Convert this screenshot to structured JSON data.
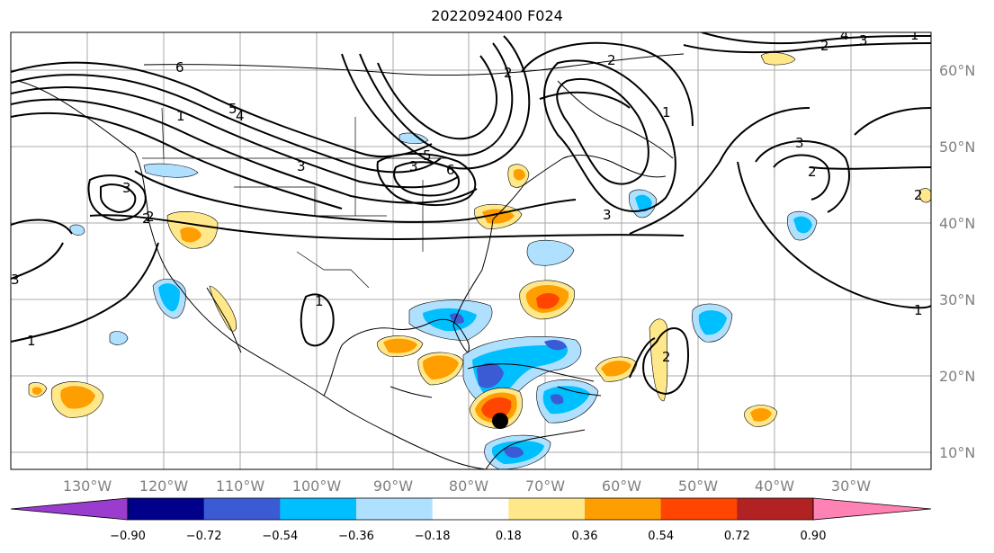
{
  "title": "2022092400 F024",
  "map": {
    "lon_ticks": [
      "130°W",
      "120°W",
      "110°W",
      "100°W",
      "90°W",
      "80°W",
      "70°W",
      "60°W",
      "50°W",
      "40°W",
      "30°W"
    ],
    "lat_ticks": [
      "60°N",
      "50°N",
      "40°N",
      "30°N",
      "20°N",
      "10°N"
    ],
    "marker": {
      "label": "storm-center",
      "lon": "76°W",
      "lat": "14°N"
    }
  },
  "colorbar": {
    "colors": [
      "#9a3ccd",
      "#00008b",
      "#3a5bd4",
      "#00bfff",
      "#b0e0ff",
      "#ffffff",
      "#ffe88a",
      "#ff9e00",
      "#ff4500",
      "#b22222",
      "#ff82b4"
    ],
    "labels": [
      "−0.90",
      "−0.72",
      "−0.54",
      "−0.36",
      "−0.18",
      "0.18",
      "0.36",
      "0.54",
      "0.72",
      "0.90"
    ]
  },
  "contour_labels": [
    "6",
    "5",
    "4",
    "3",
    "2",
    "1",
    "2",
    "3",
    "5",
    "6",
    "2",
    "3",
    "1",
    "2",
    "3",
    "1",
    "2",
    "3",
    "4",
    "2",
    "3",
    "2",
    "1",
    "1",
    "2",
    "1",
    "3"
  ]
}
